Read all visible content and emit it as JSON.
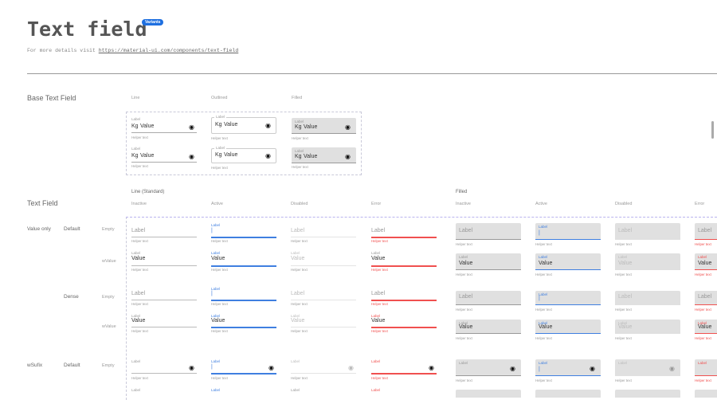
{
  "header": {
    "title": "Text field",
    "badge": "Variants",
    "details_prefix": "For more details visit ",
    "details_link": "https://material-ui.com/components/text-field"
  },
  "base": {
    "heading": "Base Text Field",
    "columns": [
      "Line",
      "Outlined",
      "Filled"
    ],
    "field": {
      "label": "Label",
      "prefix": "Kg",
      "value": "Value",
      "helper": "Helper text",
      "icon": "eye-icon"
    }
  },
  "text_field": {
    "heading": "Text Field",
    "sections": [
      {
        "title": "Line (Standard)",
        "states": [
          "Inactive",
          "Active",
          "Disabled",
          "Error"
        ]
      },
      {
        "title": "Filled",
        "states": [
          "Inactive",
          "Active",
          "Disabled",
          "Error"
        ]
      }
    ],
    "groups": [
      {
        "label": "Value only",
        "sizes": [
          {
            "label": "Default",
            "rows": [
              "Empty",
              "wValue"
            ]
          },
          {
            "label": "Dense",
            "rows": [
              "Empty",
              "wValue"
            ]
          }
        ]
      },
      {
        "label": "wSufix",
        "sizes": [
          {
            "label": "Default",
            "rows": [
              "Empty"
            ]
          }
        ]
      }
    ],
    "field": {
      "label": "Label",
      "value": "Value",
      "helper": "Helper text",
      "cursor": "|",
      "suffix_icon": "eye-icon"
    }
  },
  "colors": {
    "active": "#3f7fe0",
    "error": "#f0504f",
    "filled_bg": "#e0e0e0",
    "badge": "#1e6fe0"
  }
}
